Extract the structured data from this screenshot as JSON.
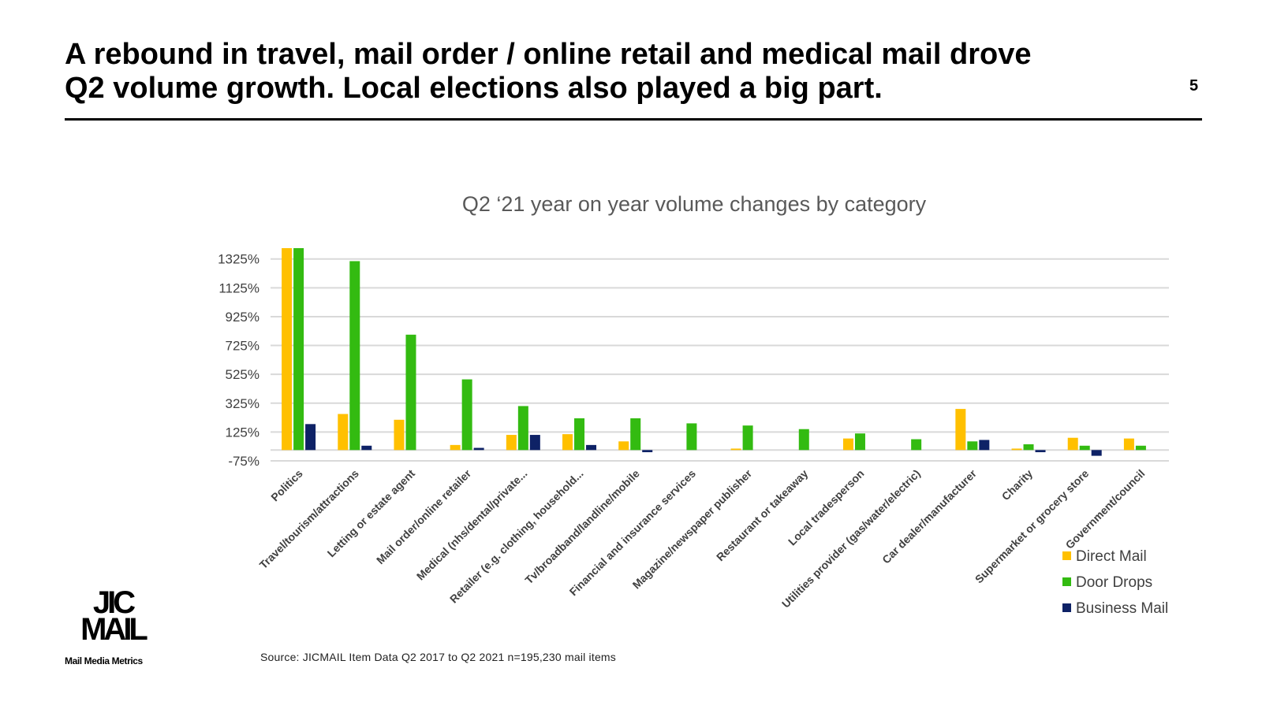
{
  "slide": {
    "headline_line1": "A rebound in travel, mail order / online retail and medical mail drove",
    "headline_line2": "Q2 volume growth. Local elections also played a big part.",
    "page_number": "5",
    "source": "Source: JICMAIL Item Data Q2 2017 to Q2 2021 n=195,230 mail items"
  },
  "logo": {
    "line1": "JIC",
    "line2": "MAIL",
    "tagline": "Mail Media Metrics"
  },
  "chart_data": {
    "type": "bar",
    "title": "Q2 ‘21 year on year volume changes by category",
    "xlabel": "",
    "ylabel": "",
    "ylim": [
      -75,
      1400
    ],
    "yticks": [
      -75,
      125,
      325,
      525,
      725,
      925,
      1125,
      1325
    ],
    "ytick_labels": [
      "-75%",
      "125%",
      "325%",
      "525%",
      "725%",
      "925%",
      "1125%",
      "1325%"
    ],
    "grid": true,
    "legend_position": "bottom-right",
    "categories": [
      "Politics",
      "Travel/tourism/attractions",
      "Letting or estate agent",
      "Mail order/online retailer",
      "Medical (nhs/dental/private...",
      "Retailer (e.g. clothing, household...",
      "Tv/broadband/landline/mobile",
      "Financial and insurance services",
      "Magazine/newspaper publisher",
      "Restaurant or takeaway",
      "Local tradesperson",
      "Utilities provider (gas/water/electric)",
      "Car dealer/manufacturer",
      "Charity",
      "Supermarket or grocery store",
      "Government/council"
    ],
    "series": [
      {
        "name": "Direct Mail",
        "color": "#FFC000",
        "values": [
          1400,
          250,
          210,
          35,
          105,
          110,
          60,
          null,
          10,
          null,
          80,
          null,
          285,
          10,
          85,
          80
        ]
      },
      {
        "name": "Door Drops",
        "color": "#33BB11",
        "values": [
          1400,
          1310,
          800,
          490,
          305,
          220,
          220,
          185,
          170,
          145,
          115,
          75,
          60,
          40,
          30,
          30
        ]
      },
      {
        "name": "Business Mail",
        "color": "#0E2266",
        "values": [
          180,
          30,
          null,
          15,
          105,
          35,
          -15,
          null,
          null,
          null,
          null,
          null,
          70,
          -15,
          -40,
          null
        ]
      }
    ]
  }
}
